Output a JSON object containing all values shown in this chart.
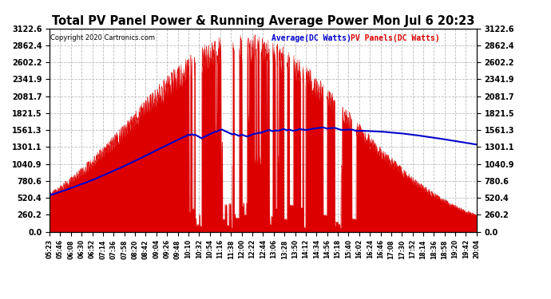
{
  "title": "Total PV Panel Power & Running Average Power Mon Jul 6 20:23",
  "copyright": "Copyright 2020 Cartronics.com",
  "legend_avg": "Average(DC Watts)",
  "legend_pv": "PV Panels(DC Watts)",
  "ymax": 3122.6,
  "ymin": 0.0,
  "yticks": [
    0.0,
    260.2,
    520.4,
    780.6,
    1040.9,
    1301.1,
    1561.3,
    1821.5,
    2081.7,
    2341.9,
    2602.2,
    2862.4,
    3122.6
  ],
  "xtick_labels": [
    "05:23",
    "05:46",
    "06:08",
    "06:30",
    "06:52",
    "07:14",
    "07:36",
    "07:58",
    "08:20",
    "08:42",
    "09:04",
    "09:26",
    "09:48",
    "10:10",
    "10:32",
    "10:54",
    "11:16",
    "11:38",
    "12:00",
    "12:22",
    "12:44",
    "13:06",
    "13:28",
    "13:50",
    "14:12",
    "14:34",
    "14:56",
    "15:18",
    "15:40",
    "16:02",
    "16:24",
    "16:46",
    "17:08",
    "17:30",
    "17:52",
    "18:14",
    "18:36",
    "18:58",
    "19:20",
    "19:42",
    "20:04"
  ],
  "bg_color": "#ffffff",
  "pv_color": "#dd0000",
  "avg_color": "#0000cc",
  "grid_color": "#aaaaaa",
  "title_color": "#000000",
  "copyright_color": "#000000",
  "avg_label_color": "#0000cc",
  "pv_label_color": "#dd0000"
}
